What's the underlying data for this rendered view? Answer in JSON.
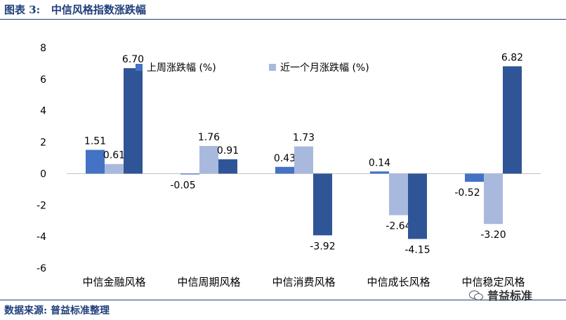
{
  "header": {
    "title": "图表 3:   中信风格指数涨跌幅"
  },
  "footer": {
    "source": "数据来源: 普益标准整理"
  },
  "watermark": {
    "text": "普益标准"
  },
  "colors": {
    "brand": "#1f3f7a",
    "series": [
      "#4472c4",
      "#a9b9de",
      "#2f5597"
    ]
  },
  "chart_data": {
    "type": "bar",
    "title": "",
    "xlabel": "",
    "ylabel": "",
    "categories": [
      "中信金融风格",
      "中信周期风格",
      "中信消费风格",
      "中信成长风格",
      "中信稳定风格"
    ],
    "series": [
      {
        "name": "上周涨跌幅 (%)",
        "values": [
          1.51,
          -0.05,
          0.43,
          0.14,
          -0.52
        ],
        "color": "#4472c4",
        "labels": [
          "1.51",
          "-0.05",
          "0.43",
          "0.14",
          "-0.52"
        ]
      },
      {
        "name": "近一个月涨跌幅 (%)",
        "values": [
          0.61,
          1.76,
          1.73,
          -2.64,
          -3.2
        ],
        "color": "#a9b9de",
        "labels": [
          "0.61",
          "1.76",
          "1.73",
          "-2.64",
          "-3.20"
        ]
      },
      {
        "name": "",
        "values": [
          6.7,
          0.91,
          -3.92,
          -4.15,
          6.82
        ],
        "color": "#2f5597",
        "labels": [
          "6.70",
          "0.91",
          "-3.92",
          "-4.15",
          "6.82"
        ]
      }
    ],
    "ylim": [
      -6,
      8
    ],
    "yticks": [
      "8",
      "6",
      "4",
      "2",
      "0",
      "-2",
      "-4",
      "-6"
    ],
    "grid": false,
    "legend": "top"
  }
}
